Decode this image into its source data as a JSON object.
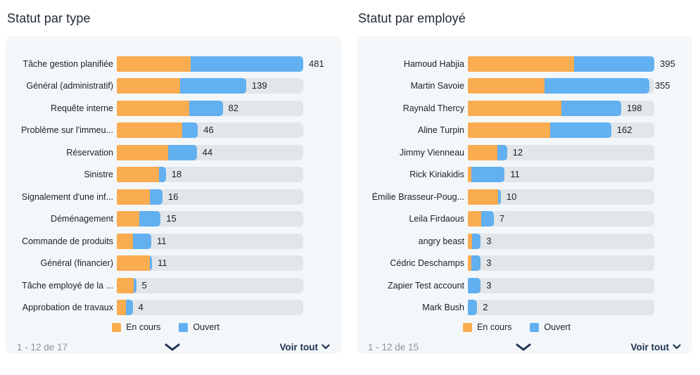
{
  "colors": {
    "en_cours": "#FAAC50",
    "ouvert": "#62B0F0",
    "bar_track": "#E3E6E8",
    "card_background": "#F4F7FA",
    "link_navy": "#1D3150",
    "muted_text": "#8C939B"
  },
  "chart_data": [
    {
      "type": "bar",
      "orientation": "horizontal",
      "stacked": true,
      "title": "Statut par type",
      "legend_position": "bottom",
      "pagination_label": "1 - 12 de 17",
      "see_all_label": "Voir tout",
      "series": [
        {
          "name": "En cours",
          "color": "#FAAC50"
        },
        {
          "name": "Ouvert",
          "color": "#62B0F0"
        }
      ],
      "rows": [
        {
          "label": "Tâche gestion planifiée",
          "total": 481,
          "en_cours_est": 191,
          "ouvert_est": 290,
          "en_cours_pct": 39.6,
          "ouvert_pct": 60.4
        },
        {
          "label": "Général (administratif)",
          "total": 139,
          "en_cours_est": 68,
          "ouvert_est": 71,
          "en_cours_pct": 33.8,
          "ouvert_pct": 35.6
        },
        {
          "label": "Requête interne",
          "total": 82,
          "en_cours_est": 56,
          "ouvert_est": 26,
          "en_cours_pct": 38.7,
          "ouvert_pct": 18.1
        },
        {
          "label": "Problème sur l'immeu...",
          "total": 46,
          "en_cours_est": 37,
          "ouvert_est": 9,
          "en_cours_pct": 35.0,
          "ouvert_pct": 8.5
        },
        {
          "label": "Réservation",
          "total": 44,
          "en_cours_est": 28,
          "ouvert_est": 16,
          "en_cours_pct": 27.6,
          "ouvert_pct": 15.3
        },
        {
          "label": "Sinistre",
          "total": 18,
          "en_cours_est": 15,
          "ouvert_est": 3,
          "en_cours_pct": 22.5,
          "ouvert_pct": 3.8
        },
        {
          "label": "Signalement d'une inf...",
          "total": 16,
          "en_cours_est": 12,
          "ouvert_est": 4,
          "en_cours_pct": 17.7,
          "ouvert_pct": 6.8
        },
        {
          "label": "Déménagement",
          "total": 15,
          "en_cours_est": 8,
          "ouvert_est": 7,
          "en_cours_pct": 12.0,
          "ouvert_pct": 11.5
        },
        {
          "label": "Commande de produits",
          "total": 11,
          "en_cours_est": 5,
          "ouvert_est": 6,
          "en_cours_pct": 8.5,
          "ouvert_pct": 10.0
        },
        {
          "label": "Général (financier)",
          "total": 11,
          "en_cours_est": 10,
          "ouvert_est": 1,
          "en_cours_pct": 17.9,
          "ouvert_pct": 1.0
        },
        {
          "label": "Tâche employé de la ...",
          "total": 5,
          "en_cours_est": 4,
          "ouvert_est": 1,
          "en_cours_pct": 8.9,
          "ouvert_pct": 1.5
        },
        {
          "label": "Approbation de travaux",
          "total": 4,
          "en_cours_est": 2,
          "ouvert_est": 2,
          "en_cours_pct": 4.9,
          "ouvert_pct": 3.6
        }
      ]
    },
    {
      "type": "bar",
      "orientation": "horizontal",
      "stacked": true,
      "title": "Statut par employé",
      "legend_position": "bottom",
      "pagination_label": "1 - 12 de 15",
      "see_all_label": "Voir tout",
      "series": [
        {
          "name": "En cours",
          "color": "#FAAC50"
        },
        {
          "name": "Ouvert",
          "color": "#62B0F0"
        }
      ],
      "rows": [
        {
          "label": "Hamoud Habjia",
          "total": 395,
          "en_cours_est": 225,
          "ouvert_est": 170,
          "en_cours_pct": 57.1,
          "ouvert_pct": 42.9
        },
        {
          "label": "Martin Savoie",
          "total": 355,
          "en_cours_est": 151,
          "ouvert_est": 204,
          "en_cours_pct": 41.3,
          "ouvert_pct": 56.0
        },
        {
          "label": "Raynald Thercy",
          "total": 198,
          "en_cours_est": 121,
          "ouvert_est": 77,
          "en_cours_pct": 50.1,
          "ouvert_pct": 32.1
        },
        {
          "label": "Aline Turpin",
          "total": 162,
          "en_cours_est": 93,
          "ouvert_est": 69,
          "en_cours_pct": 44.1,
          "ouvert_pct": 32.8
        },
        {
          "label": "Jimmy Vienneau",
          "total": 12,
          "en_cours_est": 9,
          "ouvert_est": 3,
          "en_cours_pct": 15.9,
          "ouvert_pct": 5.1
        },
        {
          "label": "Rick Kiriakidis",
          "total": 11,
          "en_cours_est": 1,
          "ouvert_est": 10,
          "en_cours_pct": 1.9,
          "ouvert_pct": 17.8
        },
        {
          "label": "Émilie Brasseur-Poug...",
          "total": 10,
          "en_cours_est": 9,
          "ouvert_est": 1,
          "en_cours_pct": 16.1,
          "ouvert_pct": 1.6
        },
        {
          "label": "Leila Firdaous",
          "total": 7,
          "en_cours_est": 4,
          "ouvert_est": 3,
          "en_cours_pct": 7.0,
          "ouvert_pct": 6.9
        },
        {
          "label": "angry beast",
          "total": 3,
          "en_cours_est": 1,
          "ouvert_est": 2,
          "en_cours_pct": 2.3,
          "ouvert_pct": 4.6
        },
        {
          "label": "Cédric Deschamps",
          "total": 3,
          "en_cours_est": 1,
          "ouvert_est": 2,
          "en_cours_pct": 1.9,
          "ouvert_pct": 5.0
        },
        {
          "label": "Zapier Test account",
          "total": 3,
          "en_cours_est": 0,
          "ouvert_est": 3,
          "en_cours_pct": 0,
          "ouvert_pct": 6.9
        },
        {
          "label": "Mark Bush",
          "total": 2,
          "en_cours_est": 0,
          "ouvert_est": 2,
          "en_cours_pct": 0,
          "ouvert_pct": 5.0
        }
      ]
    }
  ]
}
